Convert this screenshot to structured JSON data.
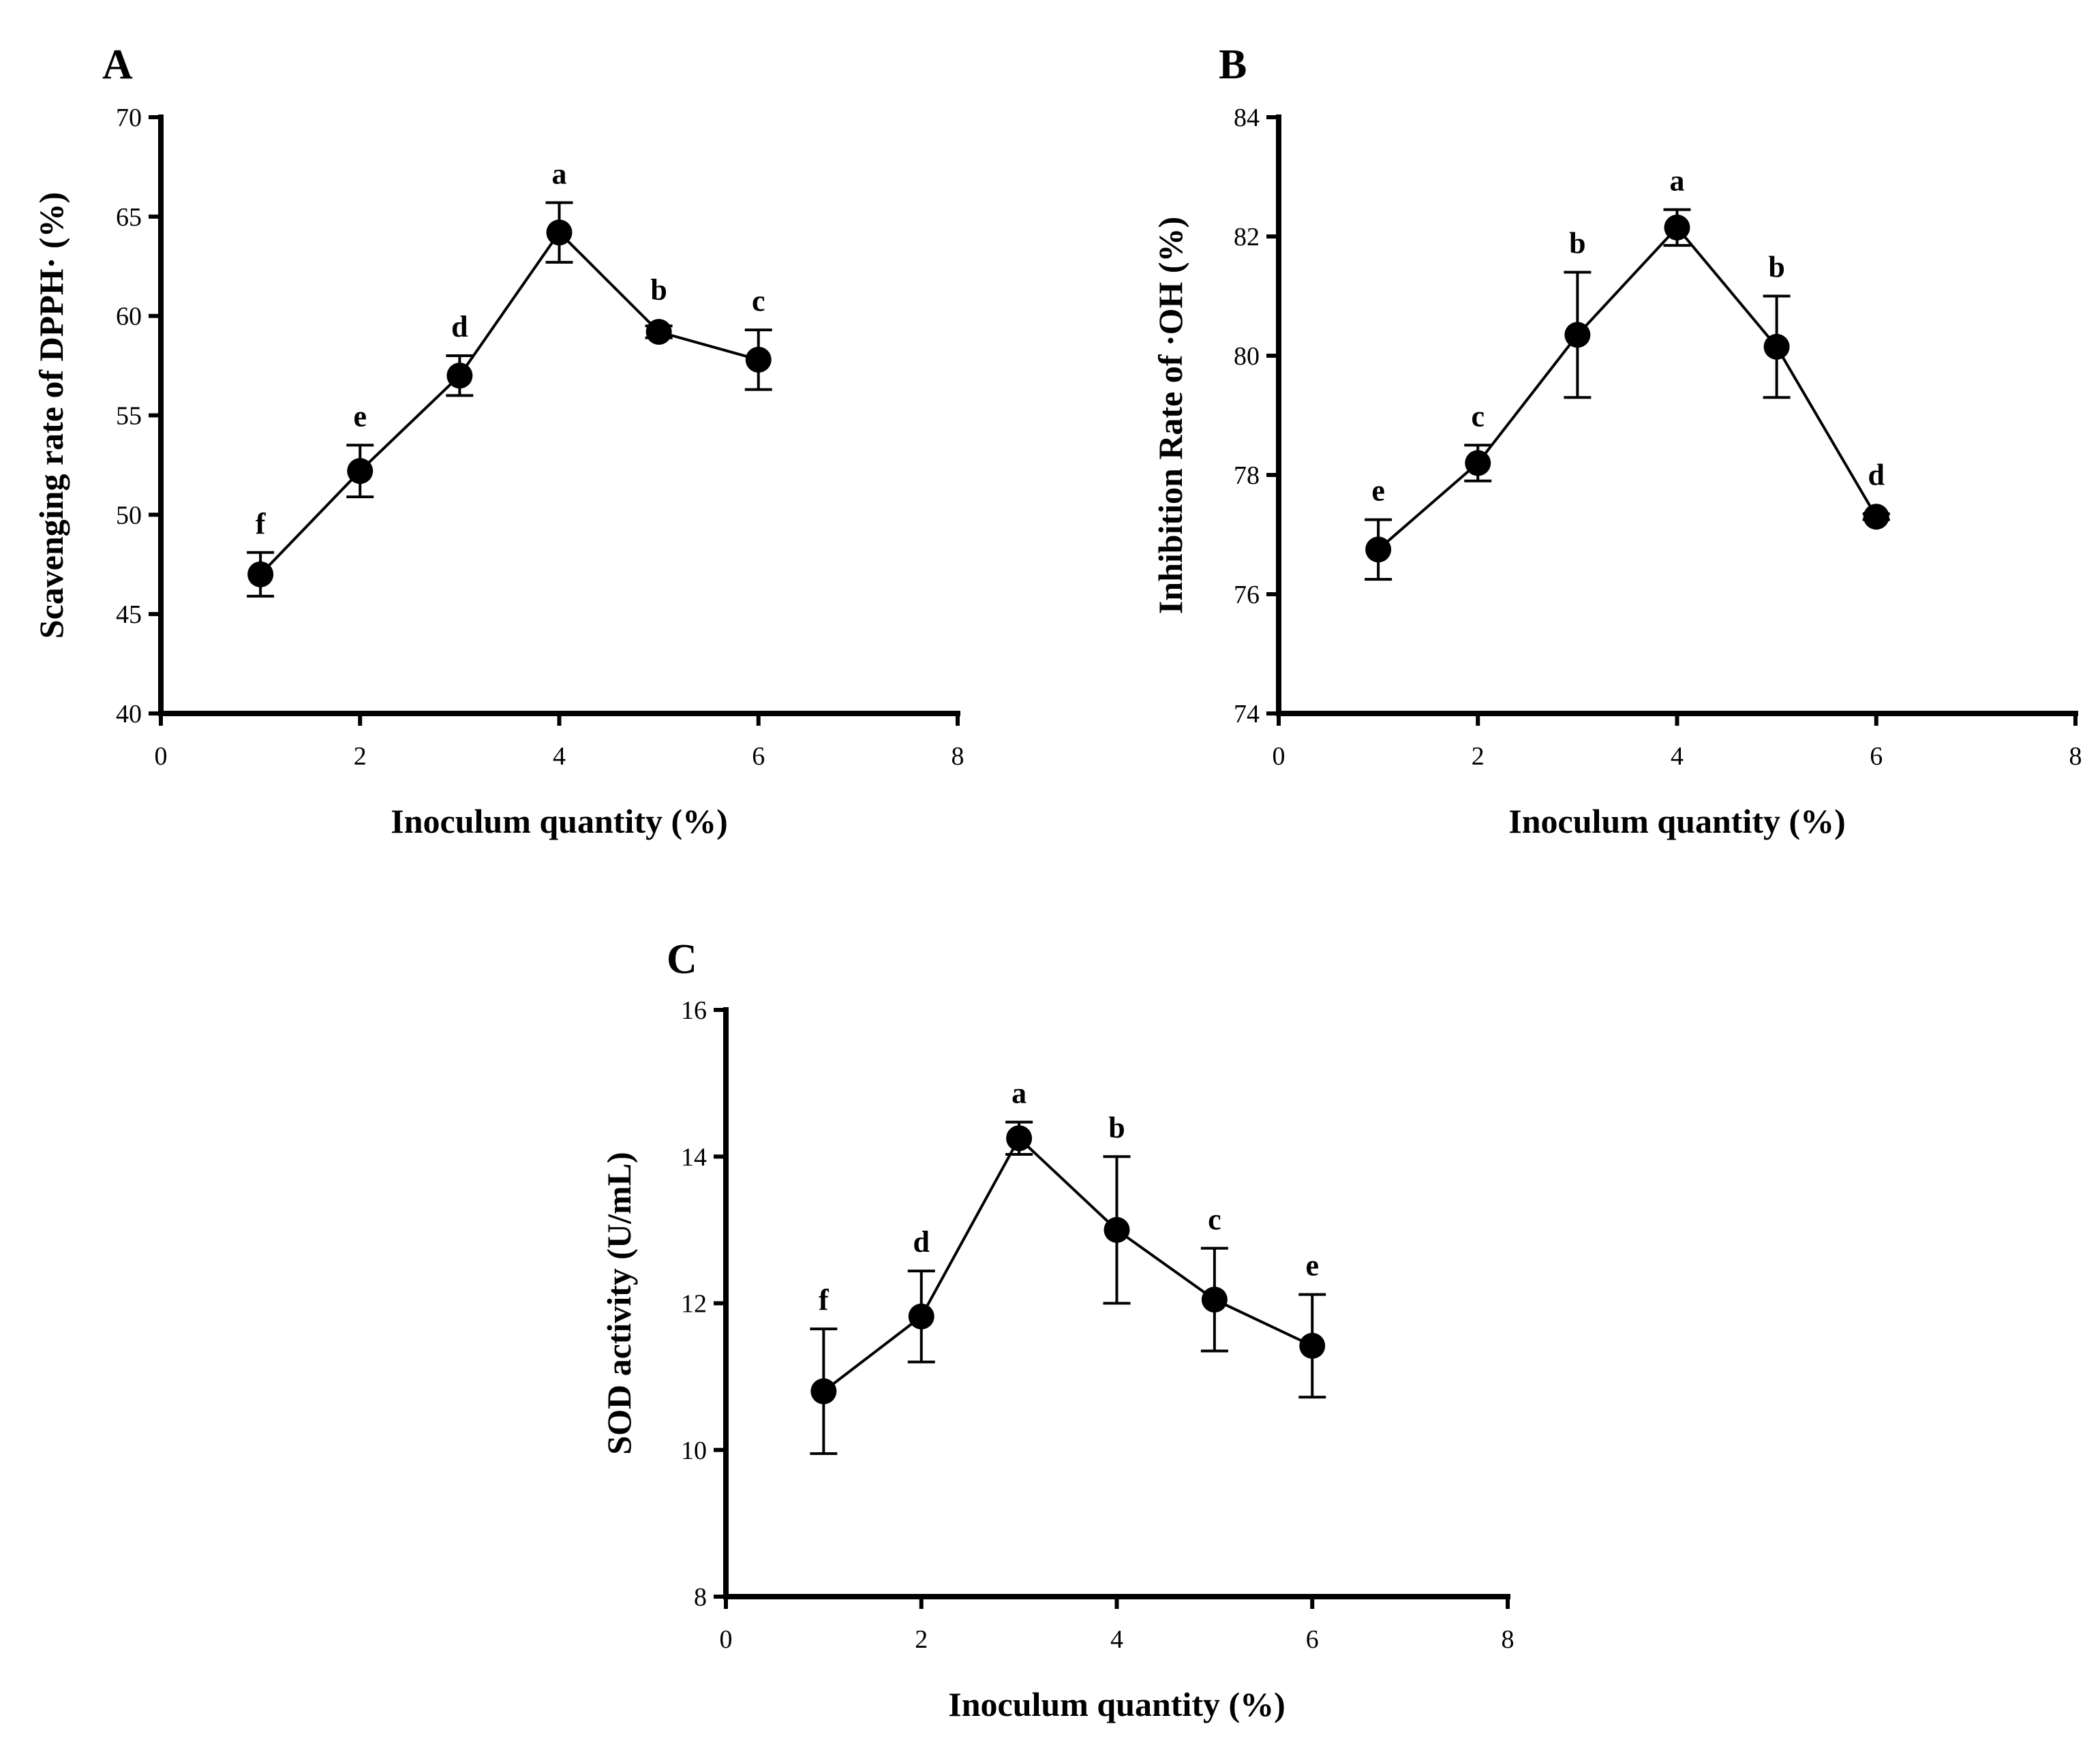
{
  "chart_data": [
    {
      "panel": "A",
      "type": "line",
      "xlabel": "Inoculum quantity (%)",
      "ylabel": "Scavenging rate of DPPH· (%)",
      "xlim": [
        0,
        8
      ],
      "ylim": [
        40,
        70
      ],
      "xticks": [
        0,
        2,
        4,
        6,
        8
      ],
      "yticks": [
        40,
        45,
        50,
        55,
        60,
        65,
        70
      ],
      "x": [
        1,
        2,
        3,
        4,
        5,
        6
      ],
      "y": [
        47.0,
        52.2,
        57.0,
        64.2,
        59.2,
        57.8
      ],
      "error": [
        1.1,
        1.3,
        1.0,
        1.5,
        0.3,
        1.5
      ],
      "significance": [
        "f",
        "e",
        "d",
        "a",
        "b",
        "c"
      ]
    },
    {
      "panel": "B",
      "type": "line",
      "xlabel": "Inoculum quantity (%)",
      "ylabel": "Inhibition Rate of ·OH (%)",
      "xlim": [
        0,
        8
      ],
      "ylim": [
        74,
        84
      ],
      "xticks": [
        0,
        2,
        4,
        6,
        8
      ],
      "yticks": [
        74,
        76,
        78,
        80,
        82,
        84
      ],
      "x": [
        1,
        2,
        3,
        4,
        5,
        6
      ],
      "y": [
        76.75,
        78.2,
        80.35,
        82.15,
        80.15,
        77.3
      ],
      "error": [
        0.5,
        0.3,
        1.05,
        0.3,
        0.85,
        0.05
      ],
      "significance": [
        "e",
        "c",
        "b",
        "a",
        "b",
        "d"
      ]
    },
    {
      "panel": "C",
      "type": "line",
      "xlabel": "Inoculum quantity (%)",
      "ylabel": "SOD activity (U/mL)",
      "xlim": [
        0,
        8
      ],
      "ylim": [
        8,
        16
      ],
      "xticks": [
        0,
        2,
        4,
        6,
        8
      ],
      "yticks": [
        8,
        10,
        12,
        14,
        16
      ],
      "x": [
        1,
        2,
        3,
        4,
        5,
        6
      ],
      "y": [
        10.8,
        11.82,
        14.25,
        13.0,
        12.05,
        11.42
      ],
      "error": [
        0.85,
        0.62,
        0.22,
        1.0,
        0.7,
        0.7
      ],
      "significance": [
        "f",
        "d",
        "a",
        "b",
        "c",
        "e"
      ]
    }
  ]
}
